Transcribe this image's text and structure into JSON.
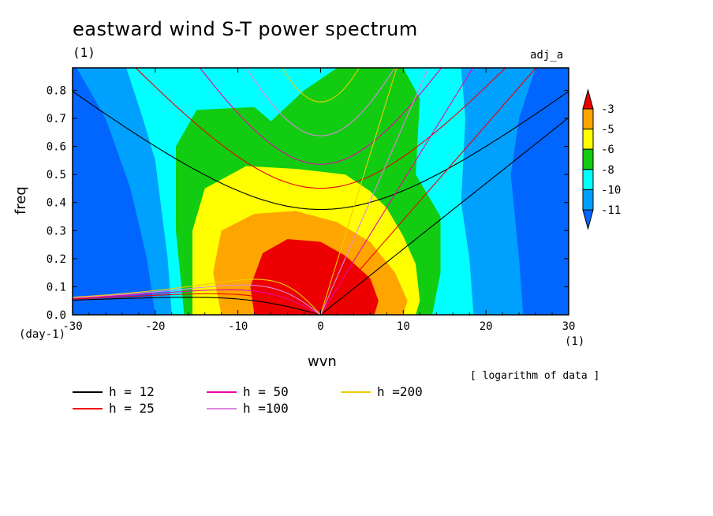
{
  "title": "eastward wind S-T power spectrum",
  "subtitle_left": "(1)",
  "subtitle_right": "adj_a",
  "footnote": "[ logarithm of data ]",
  "chart_data": {
    "type": "heatmap",
    "title": "eastward wind S-T power spectrum",
    "xlabel": "wvn",
    "ylabel": "freq",
    "x_unit": "(1)",
    "y_unit": "(day-1)",
    "xlim": [
      -30,
      30
    ],
    "ylim": [
      0,
      0.88
    ],
    "xticks": [
      -30,
      -20,
      -10,
      0,
      10,
      20,
      30
    ],
    "yticks": [
      0.0,
      0.1,
      0.2,
      0.3,
      0.4,
      0.5,
      0.6,
      0.7,
      0.8
    ],
    "ytick_labels": [
      "0.0",
      "0.1",
      "0.2",
      "0.3",
      "0.4",
      "0.5",
      "0.6",
      "0.7",
      "0.8"
    ],
    "colorbar": {
      "labels": [
        "-3",
        "-5",
        "-6",
        "-8",
        "-10",
        "-11"
      ],
      "colors": [
        "#ee0000",
        "#ffa500",
        "#ffff00",
        "#11cc11",
        "#00ffff",
        "#00a0ff",
        "#0066ff"
      ]
    },
    "contour_levels_description": "logarithm of data",
    "series": [
      {
        "name": "h = 12",
        "color": "#000000"
      },
      {
        "name": "h = 25",
        "color": "#ee0000"
      },
      {
        "name": "h = 50",
        "color": "#ee00aa"
      },
      {
        "name": "h =100",
        "color": "#dd88dd"
      },
      {
        "name": "h =200",
        "color": "#eecc00"
      }
    ]
  }
}
